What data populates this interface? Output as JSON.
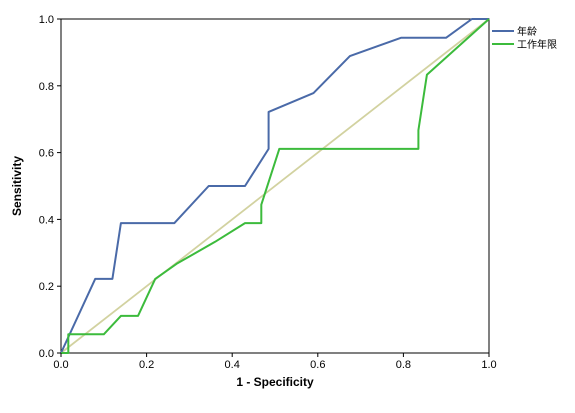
{
  "chart_data": {
    "type": "line",
    "title": "",
    "xlabel": "1 - Specificity",
    "ylabel": "Sensitivity",
    "xlim": [
      0.0,
      1.0
    ],
    "ylim": [
      0.0,
      1.0
    ],
    "x_ticks": [
      "0.0",
      "0.2",
      "0.4",
      "0.6",
      "0.8",
      "1.0"
    ],
    "y_ticks": [
      "0.0",
      "0.2",
      "0.4",
      "0.6",
      "0.8",
      "1.0"
    ],
    "grid": false,
    "legend_position": "top-right",
    "series": [
      {
        "name": "年龄",
        "color": "#4a6aa8",
        "points": [
          [
            0.0,
            0.0
          ],
          [
            0.08,
            0.222
          ],
          [
            0.12,
            0.222
          ],
          [
            0.14,
            0.389
          ],
          [
            0.265,
            0.389
          ],
          [
            0.345,
            0.5
          ],
          [
            0.43,
            0.5
          ],
          [
            0.485,
            0.611
          ],
          [
            0.485,
            0.722
          ],
          [
            0.59,
            0.778
          ],
          [
            0.675,
            0.889
          ],
          [
            0.795,
            0.944
          ],
          [
            0.9,
            0.944
          ],
          [
            0.96,
            1.0
          ],
          [
            1.0,
            1.0
          ]
        ]
      },
      {
        "name": "工作年限",
        "color": "#3cbb3c",
        "points": [
          [
            0.0,
            0.0
          ],
          [
            0.017,
            0.0
          ],
          [
            0.017,
            0.056
          ],
          [
            0.1,
            0.056
          ],
          [
            0.14,
            0.111
          ],
          [
            0.18,
            0.111
          ],
          [
            0.22,
            0.222
          ],
          [
            0.27,
            0.267
          ],
          [
            0.36,
            0.333
          ],
          [
            0.43,
            0.389
          ],
          [
            0.468,
            0.389
          ],
          [
            0.468,
            0.444
          ],
          [
            0.51,
            0.611
          ],
          [
            0.835,
            0.611
          ],
          [
            0.835,
            0.667
          ],
          [
            0.855,
            0.833
          ],
          [
            1.0,
            1.0
          ]
        ]
      },
      {
        "name": "",
        "color": "#d2d2a0",
        "points": [
          [
            0.0,
            0.0
          ],
          [
            1.0,
            1.0
          ]
        ]
      }
    ]
  }
}
